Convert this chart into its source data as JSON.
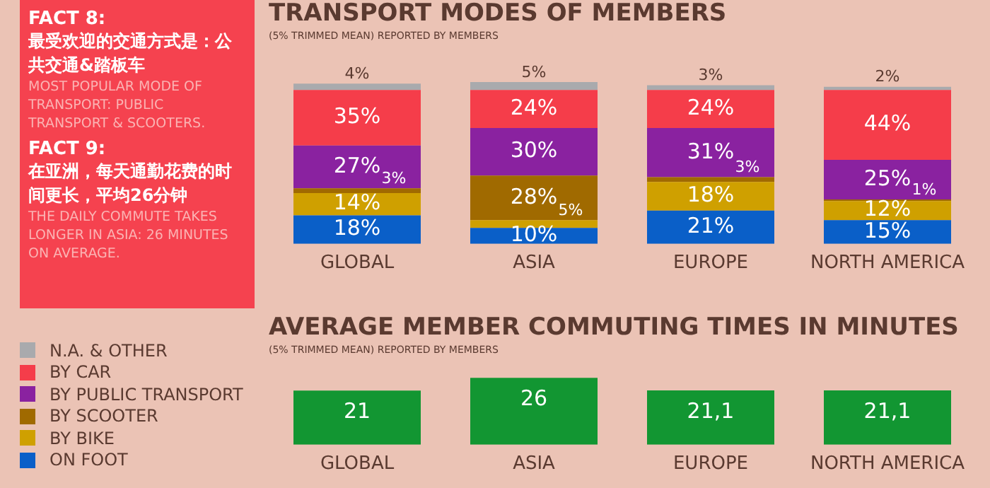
{
  "chart_data": [
    {
      "type": "other",
      "annotations": [
        "FACT 8:",
        "最受欢迎的交通方式是：公共交通&踏板车",
        "MOST POPULAR MODE OF TRANSPORT: PUBLIC TRANSPORT & SCOOTERS.",
        "FACT 9:",
        "在亚洲，每天通勤花费的时间更长，平均26分钟",
        "THE DAILY COMMUTE TAKES  LONGER IN ASIA: 26 MINUTES ON AVERAGE."
      ]
    },
    {
      "type": "bar",
      "title": "TRANSPORT MODES OF MEMBERS",
      "subtitle": "(5% TRIMMED MEAN) REPORTED BY MEMBERS",
      "categories": [
        "GLOBAL",
        "ASIA",
        "EUROPE",
        "NORTH AMERICA"
      ],
      "stacked": true,
      "legend": "left",
      "tick_labels": "x",
      "grid": false,
      "series": [
        {
          "name": "ON FOOT",
          "color": "#0a5fc8",
          "values": [
            18,
            10,
            21,
            15
          ],
          "value_labels": [
            "18%",
            "10%",
            "21%",
            "15%"
          ]
        },
        {
          "name": "BY BIKE",
          "color": "#cfa000",
          "values": [
            14,
            5,
            18,
            12
          ],
          "value_labels": [
            "14%",
            "5%",
            "18%",
            "12%"
          ]
        },
        {
          "name": "BY SCOOTER",
          "color": "#a06a00",
          "values": [
            3,
            28,
            3,
            1
          ],
          "value_labels": [
            "3%",
            "28%",
            "3%",
            "1%"
          ]
        },
        {
          "name": "BY PUBLIC TRANSPORT",
          "color": "#8a22a0",
          "values": [
            27,
            30,
            31,
            25
          ],
          "value_labels": [
            "27%",
            "30%",
            "31%",
            "25%"
          ]
        },
        {
          "name": "BY CAR",
          "color": "#f53d4a",
          "values": [
            35,
            24,
            24,
            44
          ],
          "value_labels": [
            "35%",
            "24%",
            "24%",
            "44%"
          ]
        },
        {
          "name": "N.A. & OTHER",
          "color": "#a9aaad",
          "values": [
            4,
            5,
            3,
            2
          ],
          "value_labels": [
            "4%",
            "5%",
            "3%",
            "2%"
          ]
        }
      ]
    },
    {
      "type": "bar",
      "title": "AVERAGE MEMBER COMMUTING TIMES IN MINUTES",
      "subtitle": "(5% TRIMMED MEAN) REPORTED BY MEMBERS",
      "categories": [
        "GLOBAL",
        "ASIA",
        "EUROPE",
        "NORTH AMERICA"
      ],
      "tick_labels": "x",
      "grid": false,
      "color": "#129632",
      "values": [
        21,
        26,
        21.1,
        21.1
      ],
      "value_labels": [
        "21",
        "26",
        "21,1",
        "21,1"
      ]
    }
  ]
}
